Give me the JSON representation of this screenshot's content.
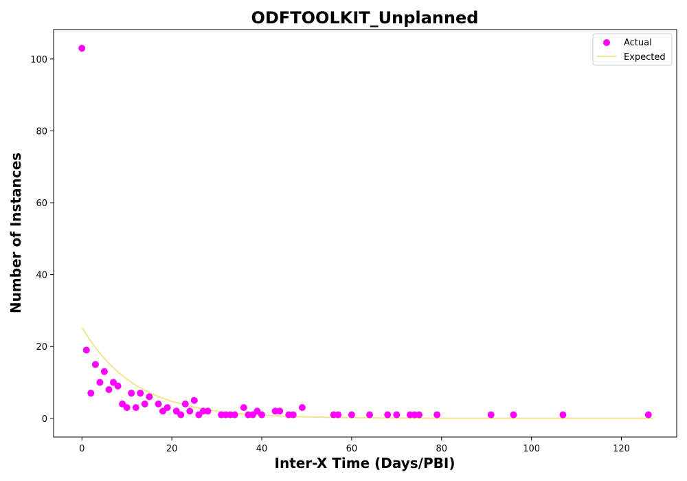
{
  "chart_data": {
    "type": "scatter",
    "title": "ODFTOOLKIT_Unplanned",
    "xlabel": "Inter-X Time (Days/PBI)",
    "ylabel": "Number of Instances",
    "xlim": [
      -6.3,
      132.3
    ],
    "ylim": [
      -5.2,
      108.2
    ],
    "xticks": [
      0,
      20,
      40,
      60,
      80,
      100,
      120
    ],
    "yticks": [
      0,
      20,
      40,
      60,
      80,
      100
    ],
    "legend": {
      "position": "top-right",
      "items": [
        "Actual",
        "Expected"
      ]
    },
    "colors": {
      "actual": "#ff00ff",
      "expected": "#f0e68c"
    },
    "series": [
      {
        "name": "Actual",
        "kind": "scatter",
        "x": [
          0,
          1,
          2,
          3,
          4,
          5,
          6,
          7,
          8,
          9,
          10,
          11,
          12,
          13,
          14,
          15,
          17,
          18,
          19,
          21,
          22,
          23,
          24,
          25,
          26,
          27,
          28,
          31,
          32,
          33,
          34,
          36,
          37,
          38,
          39,
          40,
          43,
          44,
          46,
          47,
          49,
          56,
          57,
          60,
          64,
          68,
          70,
          73,
          74,
          75,
          79,
          91,
          96,
          107,
          126
        ],
        "y": [
          103,
          19,
          7,
          15,
          10,
          13,
          8,
          10,
          9,
          4,
          3,
          7,
          3,
          7,
          4,
          6,
          4,
          2,
          3,
          2,
          1,
          4,
          2,
          5,
          1,
          2,
          2,
          1,
          1,
          1,
          1,
          3,
          1,
          1,
          2,
          1,
          2,
          2,
          1,
          1,
          3,
          1,
          1,
          1,
          1,
          1,
          1,
          1,
          1,
          1,
          1,
          1,
          1,
          1,
          1
        ]
      },
      {
        "name": "Expected",
        "kind": "line",
        "x": [
          0,
          2,
          4,
          6,
          8,
          10,
          12,
          14,
          16,
          18,
          20,
          25,
          30,
          35,
          40,
          45,
          50,
          60,
          70,
          80,
          90,
          100,
          110,
          120,
          127
        ],
        "y": [
          25.3,
          21.4,
          18.1,
          15.3,
          12.9,
          10.9,
          9.2,
          7.8,
          6.6,
          5.6,
          4.7,
          3.1,
          2.0,
          1.3,
          0.9,
          0.6,
          0.4,
          0.2,
          0.07,
          0.03,
          0.01,
          0.0,
          0.0,
          0.0,
          0.0
        ]
      }
    ]
  }
}
